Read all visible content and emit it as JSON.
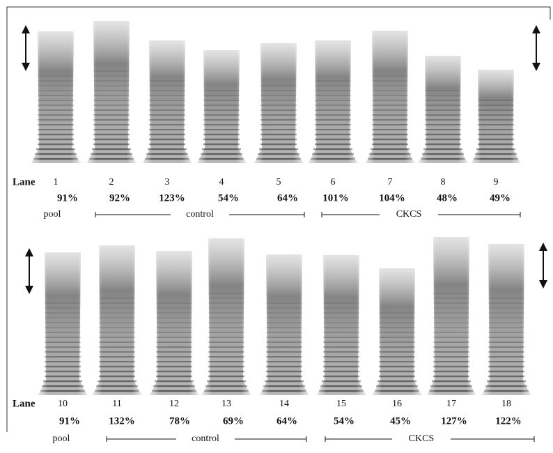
{
  "panels": [
    {
      "lane_label": "Lane",
      "lanes": [
        {
          "number": "1",
          "percent": "91%"
        },
        {
          "number": "2",
          "percent": "92%"
        },
        {
          "number": "3",
          "percent": "123%"
        },
        {
          "number": "4",
          "percent": "54%"
        },
        {
          "number": "5",
          "percent": "64%"
        },
        {
          "number": "6",
          "percent": "101%"
        },
        {
          "number": "7",
          "percent": "104%"
        },
        {
          "number": "8",
          "percent": "48%"
        },
        {
          "number": "9",
          "percent": "49%"
        }
      ],
      "groups": [
        {
          "label": "pool"
        },
        {
          "label": "control"
        },
        {
          "label": "CKCS"
        }
      ]
    },
    {
      "lane_label": "Lane",
      "lanes": [
        {
          "number": "10",
          "percent": "91%"
        },
        {
          "number": "11",
          "percent": "132%"
        },
        {
          "number": "12",
          "percent": "78%"
        },
        {
          "number": "13",
          "percent": "69%"
        },
        {
          "number": "14",
          "percent": "64%"
        },
        {
          "number": "15",
          "percent": "54%"
        },
        {
          "number": "16",
          "percent": "45%"
        },
        {
          "number": "17",
          "percent": "127%"
        },
        {
          "number": "18",
          "percent": "122%"
        }
      ],
      "groups": [
        {
          "label": "pool"
        },
        {
          "label": "control"
        },
        {
          "label": "CKCS"
        }
      ]
    }
  ]
}
